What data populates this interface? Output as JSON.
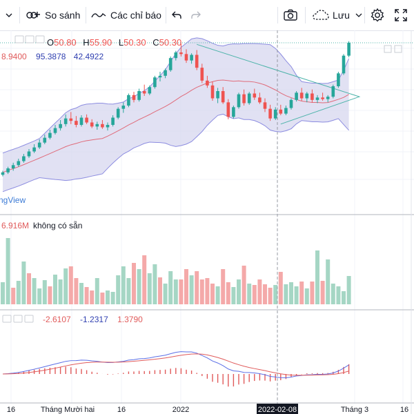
{
  "toolbar": {
    "compare_label": "So sánh",
    "indicators_label": "Các chỉ báo",
    "save_label": "Lưu",
    "icons": [
      "chevron-down-icon",
      "compare-icon",
      "indicators-icon",
      "undo-icon",
      "redo-icon",
      "camera-icon",
      "cloud-save-icon",
      "gear-icon",
      "fullscreen-icon"
    ]
  },
  "legend": {
    "ohlc": [
      {
        "k": "O",
        "v": "50.80"
      },
      {
        "k": "H",
        "v": "55.90"
      },
      {
        "k": "L",
        "v": "50.30"
      },
      {
        "k": "C",
        "v": "50.30"
      }
    ],
    "bb_values": [
      "8.9400",
      "95.3878",
      "42.4922"
    ],
    "volume_value": "6.916M",
    "volume_note": "không có sẵn",
    "macd_values": [
      "-2.6107",
      "-1.2317",
      "1.3790"
    ],
    "watermark": "ngView"
  },
  "colors": {
    "up": "#26a69a",
    "down": "#ef5350",
    "vol_up": "#a5d6c4",
    "vol_down": "#f4a9a9",
    "bb_fill": "#d7d7ef",
    "bb_line": "#8c8ce0",
    "ma": "#e06b7a",
    "macd_blue": "#5a6ee6",
    "macd_red": "#e05a5a",
    "triangle": "#4ab3a8"
  },
  "chart_data": [
    {
      "type": "candlestick",
      "title": "",
      "x_tick_labels": [
        "16",
        "Tháng Mười hai",
        "16",
        "2022",
        "2022-02-08",
        "Tháng 3",
        "16"
      ],
      "candles": [
        [
          40,
          40.5,
          39.8,
          40.3
        ],
        [
          40.3,
          41,
          40.1,
          40.8
        ],
        [
          40.8,
          41.5,
          40.5,
          41.2
        ],
        [
          41.2,
          42,
          41,
          41.7
        ],
        [
          41.7,
          42.6,
          41.5,
          42.3
        ],
        [
          42.3,
          43.2,
          42.1,
          42.9
        ],
        [
          42.9,
          43.8,
          42.7,
          43.4
        ],
        [
          43.4,
          44.4,
          43.2,
          44
        ],
        [
          44,
          45,
          43.8,
          44.6
        ],
        [
          44.6,
          45.6,
          44.4,
          45.2
        ],
        [
          45.2,
          46.2,
          45,
          45.8
        ],
        [
          45.8,
          46.8,
          45.5,
          46.3
        ],
        [
          46.3,
          47.5,
          46,
          47
        ],
        [
          47,
          47.8,
          46.3,
          46.7
        ],
        [
          46.7,
          47.3,
          45.9,
          46.2
        ],
        [
          46.2,
          47.4,
          46,
          47.1
        ],
        [
          47.1,
          47.5,
          46.3,
          46.5
        ],
        [
          46.5,
          46.9,
          45.8,
          46
        ],
        [
          46,
          46.6,
          45.6,
          46.3
        ],
        [
          46.3,
          46.8,
          45.7,
          45.9
        ],
        [
          45.9,
          46.5,
          45.5,
          46.2
        ],
        [
          46.2,
          47.4,
          46,
          47.1
        ],
        [
          47.1,
          48.4,
          46.9,
          48.2
        ],
        [
          48.2,
          49,
          47.7,
          48.6
        ],
        [
          48.6,
          50.1,
          48.4,
          49.9
        ],
        [
          49.9,
          50.3,
          49,
          49.3
        ],
        [
          49.3,
          50.7,
          49.1,
          50.4
        ],
        [
          50.4,
          51.2,
          49.8,
          50.1
        ],
        [
          50.1,
          51.1,
          49.9,
          50.9
        ],
        [
          50.9,
          52.3,
          50.7,
          52.1
        ],
        [
          52.1,
          52.8,
          51.6,
          52.3
        ],
        [
          52.3,
          53.2,
          52,
          53
        ],
        [
          53,
          54.7,
          52.8,
          54.5
        ],
        [
          54.5,
          55.4,
          54.2,
          55.2
        ],
        [
          55.2,
          56.3,
          54.7,
          55
        ],
        [
          55,
          55.6,
          53.9,
          54.2
        ],
        [
          54.2,
          55.1,
          53.8,
          54.9
        ],
        [
          54.9,
          55.5,
          53,
          53.3
        ],
        [
          53.3,
          53.8,
          51.4,
          51.7
        ],
        [
          51.7,
          52.3,
          50.8,
          51.1
        ],
        [
          51.1,
          51.6,
          49.2,
          49.5
        ],
        [
          49.5,
          50.8,
          48.9,
          50.4
        ],
        [
          50.4,
          50.9,
          48.8,
          49
        ],
        [
          49,
          49.4,
          46.9,
          47.2
        ],
        [
          47.2,
          48.6,
          47,
          48.4
        ],
        [
          48.4,
          50.2,
          48.2,
          50
        ],
        [
          50,
          50.6,
          48.6,
          48.9
        ],
        [
          48.9,
          50.3,
          48.7,
          50.1
        ],
        [
          50.1,
          50.7,
          49.3,
          49.6
        ],
        [
          49.6,
          50.2,
          48.8,
          49
        ],
        [
          49,
          49.5,
          47.8,
          48.2
        ],
        [
          48.2,
          48.7,
          46.7,
          47
        ],
        [
          47,
          48.4,
          46.8,
          48.1
        ],
        [
          48.1,
          48.7,
          47.4,
          47.6
        ],
        [
          47.6,
          48.6,
          47.4,
          48.3
        ],
        [
          48.3,
          49.5,
          48.1,
          49.3
        ],
        [
          49.3,
          50.4,
          49.1,
          50.2
        ],
        [
          50.2,
          50.8,
          49.2,
          49.5
        ],
        [
          49.5,
          50.3,
          49,
          50.1
        ],
        [
          50.1,
          50.6,
          49,
          49.3
        ],
        [
          49.3,
          49.9,
          48.9,
          49.6
        ],
        [
          49.6,
          50.2,
          49.2,
          49.4
        ],
        [
          49.4,
          49.9,
          49,
          49.7
        ],
        [
          49.7,
          51.2,
          49.5,
          51
        ],
        [
          51,
          52.8,
          50.8,
          52.6
        ],
        [
          52.6,
          55,
          52.4,
          54.8
        ],
        [
          54.8,
          56.6,
          54.6,
          56.4
        ]
      ]
    },
    {
      "type": "bar",
      "name": "volume",
      "values": [
        3.2,
        9.6,
        2.4,
        3.4,
        6.2,
        4.5,
        3.8,
        2.3,
        3.5,
        2.6,
        4.3,
        3.6,
        5.2,
        5.5,
        3.8,
        3.1,
        2.5,
        2.0,
        3.8,
        1.7,
        2.0,
        1.8,
        4.2,
        5.5,
        3.8,
        6.0,
        5.1,
        7.1,
        4.5,
        5.8,
        3.9,
        3.0,
        4.8,
        3.6,
        3.6,
        5.1,
        4.2,
        4.8,
        3.6,
        3.8,
        3.0,
        2.6,
        5.1,
        3.2,
        2.5,
        3.6,
        5.6,
        3.0,
        2.8,
        3.6,
        2.9,
        2.4,
        2.8,
        4.7,
        2.9,
        3.2,
        2.6,
        3.3,
        2.3,
        3.3,
        7.8,
        3.4,
        6.5,
        3.0,
        2.6,
        1.9,
        4.1
      ],
      "up": [
        1,
        1,
        0,
        1,
        1,
        0,
        1,
        1,
        1,
        0,
        1,
        1,
        1,
        0,
        0,
        1,
        0,
        0,
        1,
        0,
        1,
        1,
        1,
        1,
        1,
        0,
        1,
        0,
        1,
        1,
        0,
        1,
        1,
        1,
        0,
        0,
        1,
        0,
        0,
        0,
        0,
        1,
        0,
        0,
        1,
        1,
        0,
        1,
        0,
        0,
        0,
        0,
        1,
        0,
        1,
        1,
        1,
        0,
        1,
        0,
        1,
        0,
        1,
        1,
        1,
        1,
        1
      ]
    },
    {
      "type": "bar",
      "name": "macd-histogram",
      "series_values": [
        -2.6107,
        -1.2317,
        1.379
      ]
    }
  ]
}
